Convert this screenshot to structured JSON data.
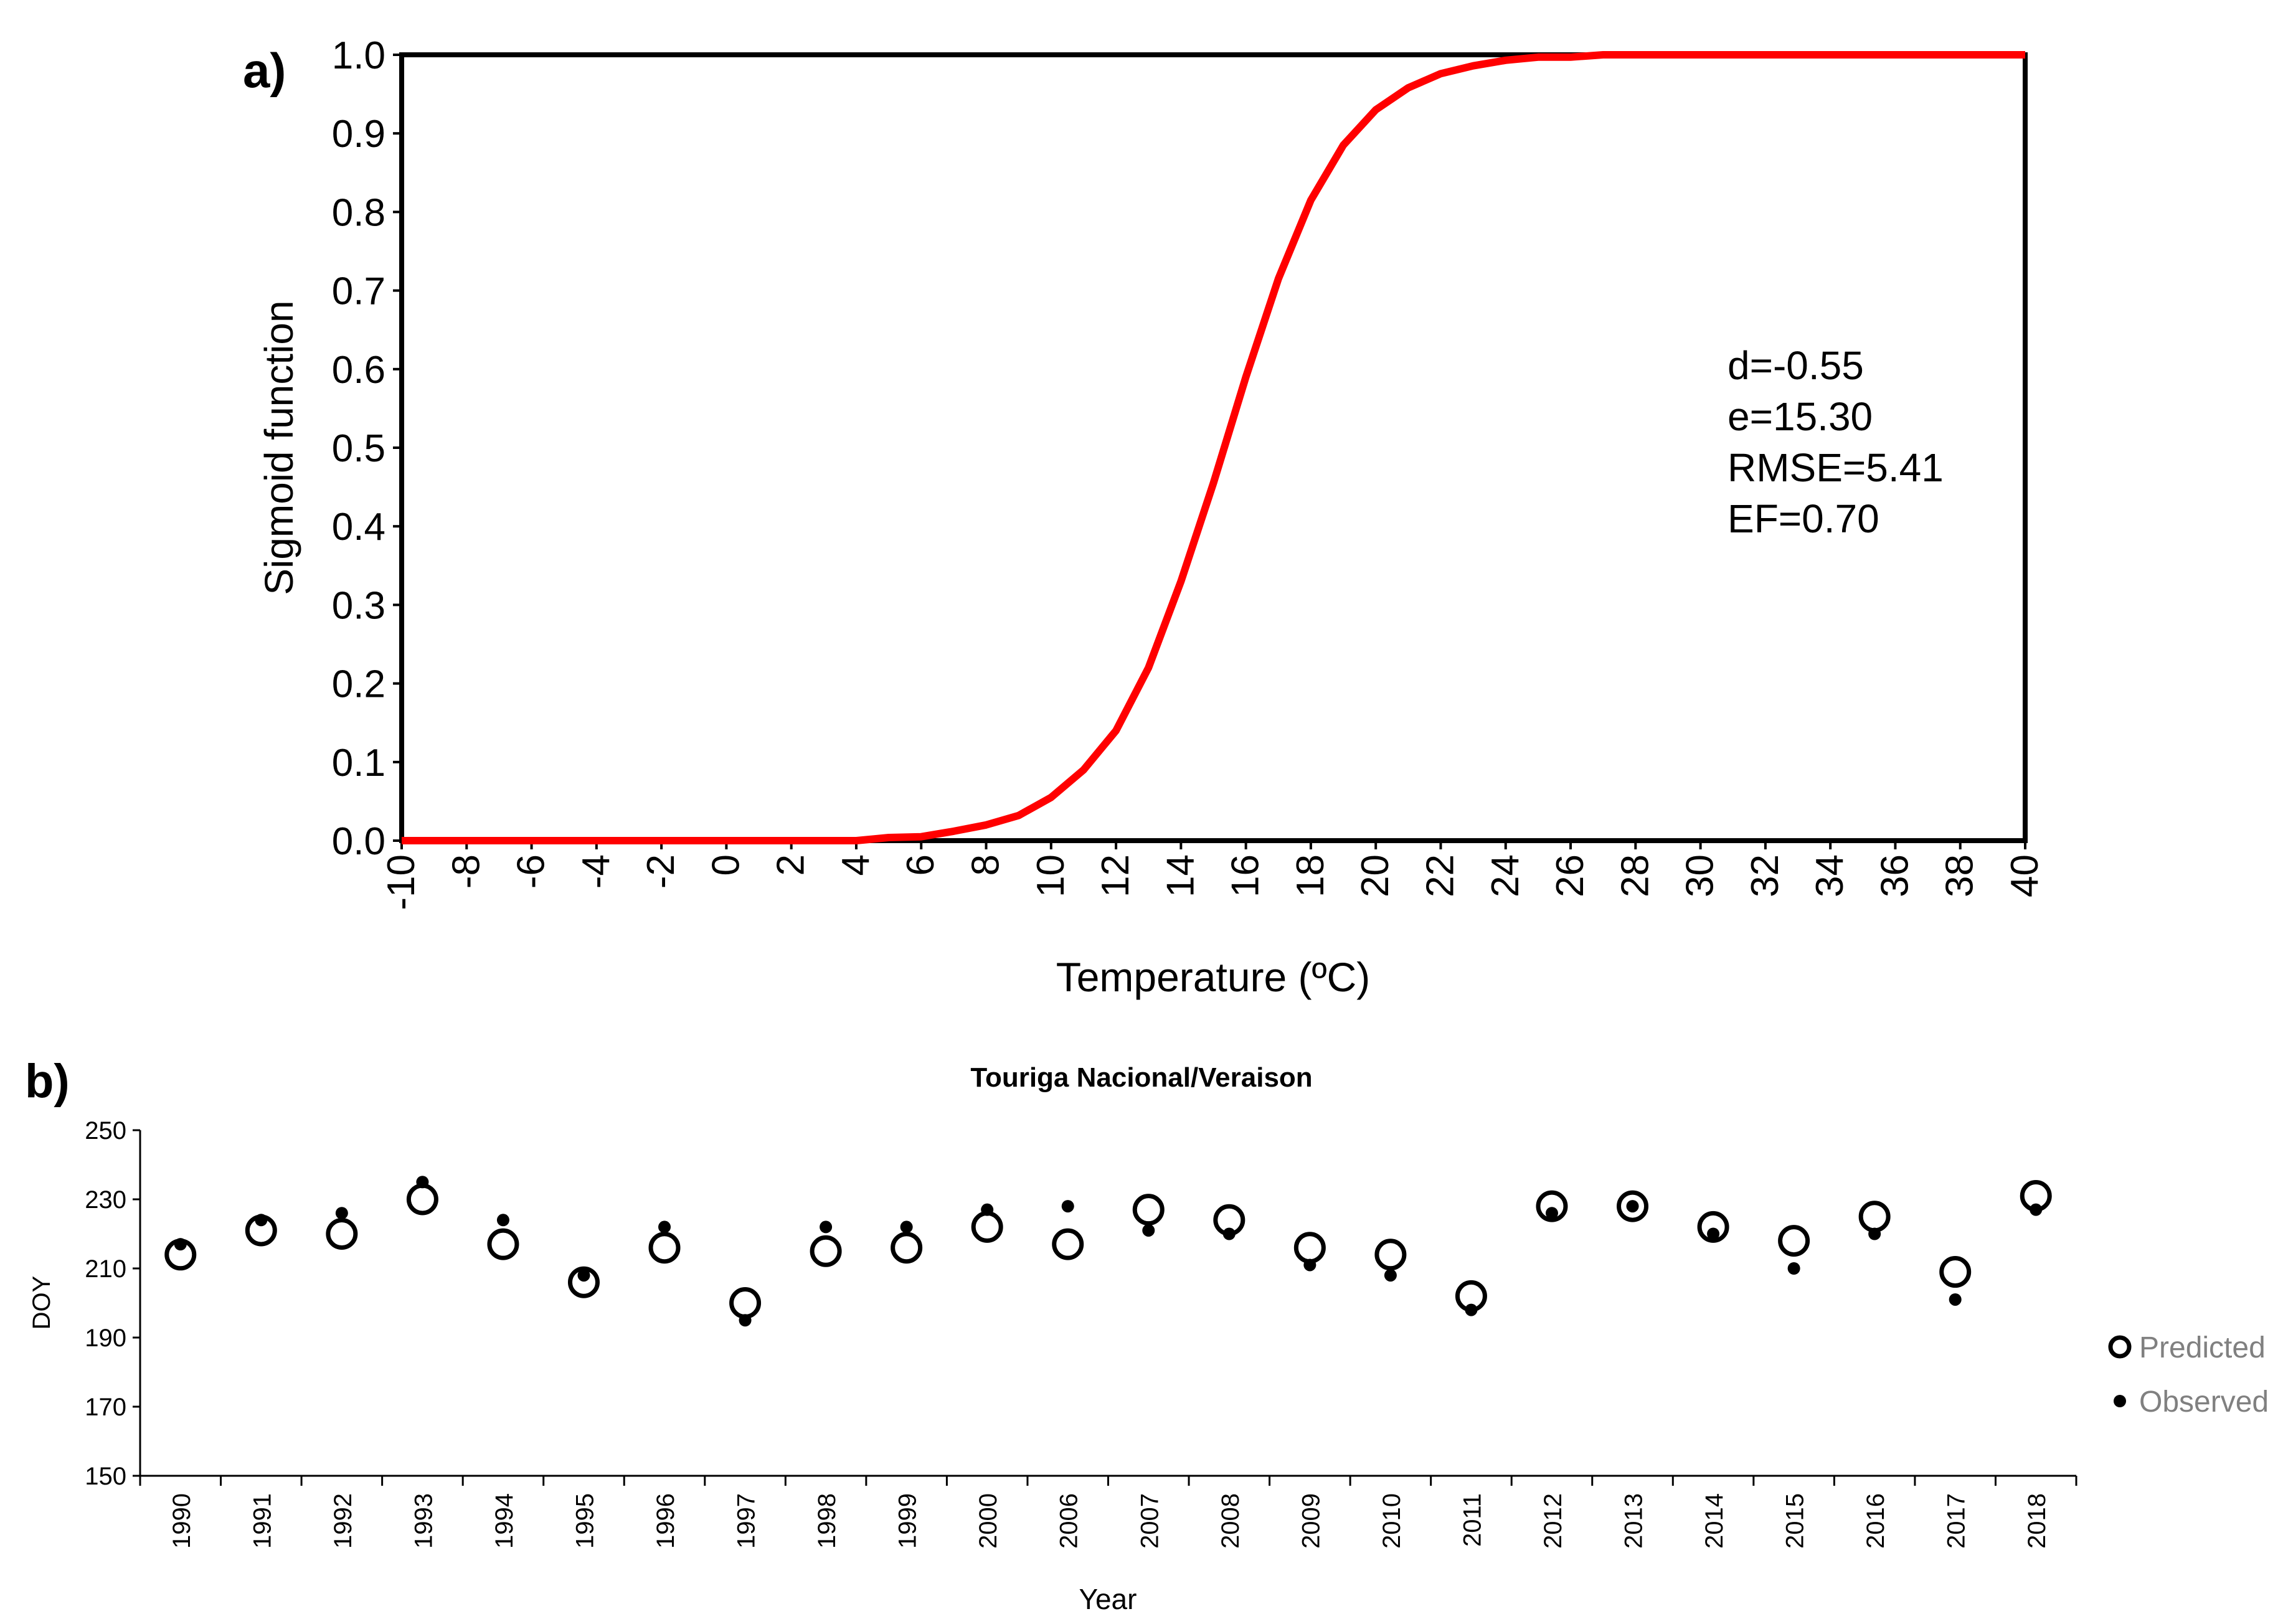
{
  "chart_data": [
    {
      "panel_label": "a)",
      "type": "line",
      "title": "",
      "xlabel": "Temperature  (ºC)",
      "ylabel": "Sigmoid function",
      "xlim": [
        -10,
        40
      ],
      "ylim": [
        0,
        1
      ],
      "x_ticks": [
        "-10",
        "-8",
        "-6",
        "-4",
        "-2",
        "0",
        "2",
        "4",
        "6",
        "8",
        "10",
        "12",
        "14",
        "16",
        "18",
        "20",
        "22",
        "24",
        "26",
        "28",
        "30",
        "32",
        "34",
        "36",
        "38",
        "40"
      ],
      "y_ticks": [
        "0.0",
        "0.1",
        "0.2",
        "0.3",
        "0.4",
        "0.5",
        "0.6",
        "0.7",
        "0.8",
        "0.9",
        "1.0"
      ],
      "line_color": "#ff0000",
      "series": [
        {
          "name": "Sigmoid",
          "x": [
            -10,
            -9,
            -8,
            -7,
            -6,
            -5,
            -4,
            -3,
            -2,
            -1,
            0,
            1,
            2,
            3,
            4,
            5,
            6,
            7,
            8,
            9,
            10,
            11,
            12,
            13,
            14,
            15,
            16,
            17,
            18,
            19,
            20,
            21,
            22,
            23,
            24,
            25,
            26,
            27,
            28,
            29,
            30,
            31,
            32,
            33,
            34,
            35,
            36,
            37,
            38,
            39,
            40
          ],
          "y": [
            0,
            0,
            0,
            0,
            0,
            0,
            0,
            0,
            0,
            0,
            0,
            0,
            0,
            0,
            0,
            0.004,
            0.005,
            0.012,
            0.02,
            0.032,
            0.055,
            0.09,
            0.14,
            0.22,
            0.33,
            0.455,
            0.59,
            0.715,
            0.815,
            0.885,
            0.93,
            0.958,
            0.976,
            0.986,
            0.993,
            0.997,
            0.997,
            1,
            1,
            1,
            1,
            1,
            1,
            1,
            1,
            1,
            1,
            1,
            1,
            1,
            1
          ]
        }
      ],
      "annotations": [
        "d=-0.55",
        "e=15.30",
        "RMSE=5.41",
        "EF=0.70"
      ]
    },
    {
      "panel_label": "b)",
      "type": "scatter",
      "title": "Touriga Nacional/Veraison",
      "xlabel": "Year",
      "ylabel": "DOY",
      "ylim": [
        150,
        250
      ],
      "y_ticks": [
        "150",
        "170",
        "190",
        "210",
        "230",
        "250"
      ],
      "categories": [
        "1990",
        "1991",
        "1992",
        "1993",
        "1994",
        "1995",
        "1996",
        "1997",
        "1998",
        "1999",
        "2000",
        "2006",
        "2007",
        "2008",
        "2009",
        "2010",
        "2011",
        "2012",
        "2013",
        "2014",
        "2015",
        "2016",
        "2017",
        "2018"
      ],
      "series": [
        {
          "name": "Predicted",
          "marker": "open-circle",
          "values": [
            214,
            221,
            220,
            230,
            217,
            206,
            216,
            200,
            215,
            216,
            222,
            217,
            227,
            224,
            216,
            214,
            202,
            228,
            228,
            222,
            218,
            225,
            209,
            231
          ]
        },
        {
          "name": "Observed",
          "marker": "filled-dot",
          "values": [
            217,
            224,
            226,
            235,
            224,
            208,
            222,
            195,
            222,
            222,
            227,
            228,
            221,
            220,
            211,
            208,
            198,
            226,
            228,
            220,
            210,
            220,
            201,
            227
          ]
        }
      ],
      "legend": {
        "position": "right",
        "entries": [
          "Predicted",
          "Observed"
        ]
      }
    }
  ]
}
